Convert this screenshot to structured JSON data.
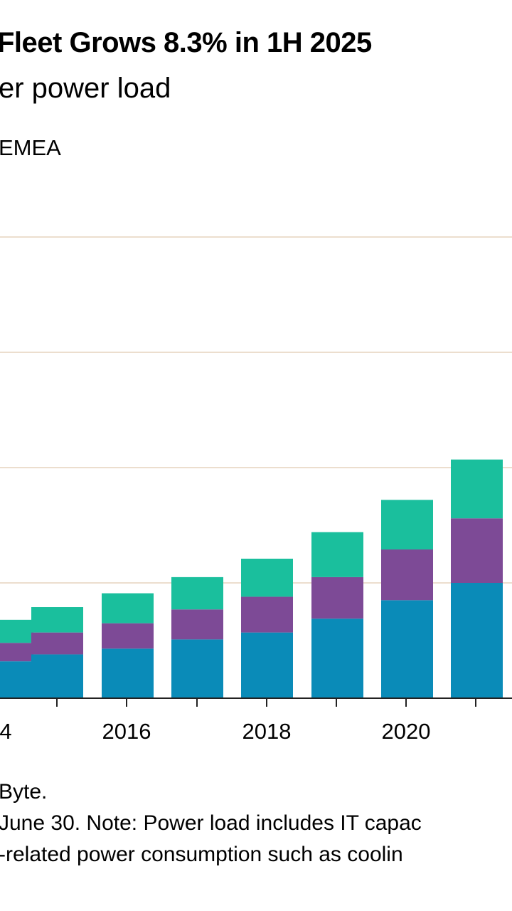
{
  "header": {
    "title": "Fleet Grows 8.3% in 1H 2025",
    "subtitle": "er power load",
    "legend_fragment": "EMEA"
  },
  "footnotes": {
    "line1": "Byte.",
    "line2": "June 30. Note: Power load includes IT capac",
    "line3": "-related power consumption such as coolin"
  },
  "colors": {
    "bottom_series": "#0a8bb8",
    "middle_series": "#7d4a96",
    "top_series": "#1abf9d",
    "gridline": "#e6d3bd",
    "axis": "#222222"
  },
  "chart_data": {
    "type": "bar",
    "stacked": true,
    "categories": [
      "",
      "",
      "2016",
      "",
      "2018",
      "",
      "2020",
      ""
    ],
    "x_tick_labels": [
      "4",
      "2016",
      "2018",
      "2020"
    ],
    "ylim": [
      0,
      200
    ],
    "gridlines": [
      50,
      100,
      150,
      200
    ],
    "grid": true,
    "series": [
      {
        "values": [
          16,
          19,
          21.5,
          25.5,
          28.5,
          34.5,
          42.5,
          50
        ]
      },
      {
        "values": [
          8,
          9.5,
          11,
          13,
          15.5,
          18,
          22,
          28
        ]
      },
      {
        "values": [
          10,
          11,
          13,
          14,
          16.5,
          19.5,
          21.5,
          25.5
        ]
      }
    ]
  }
}
